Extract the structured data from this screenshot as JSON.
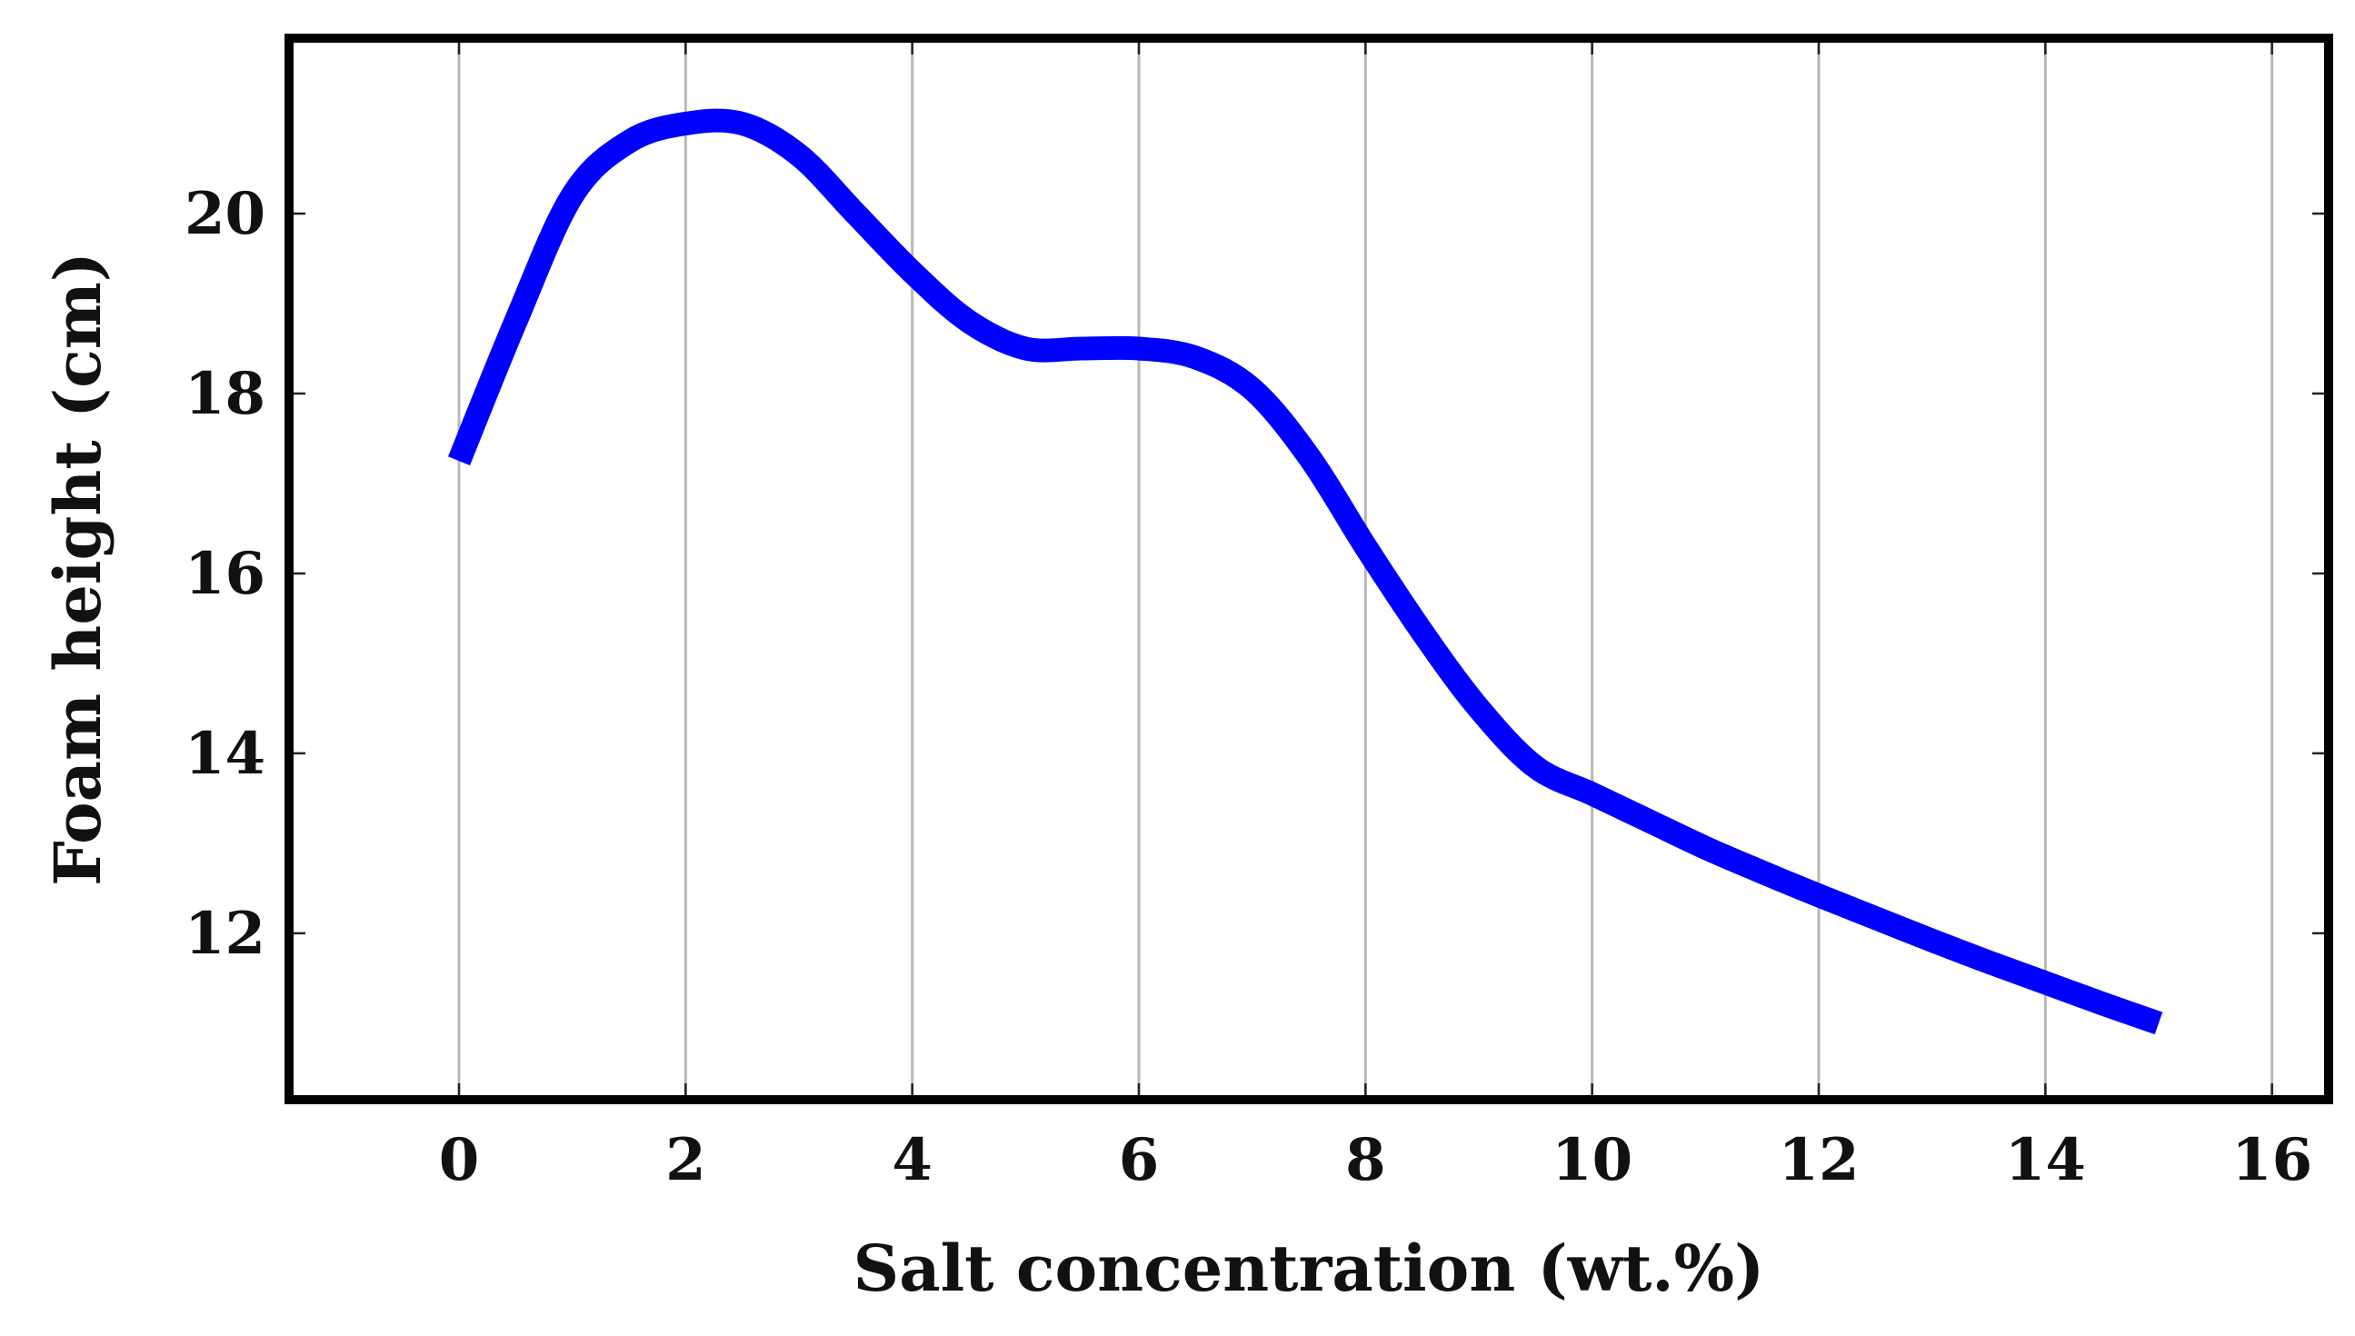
{
  "chart_data": {
    "type": "line",
    "title": "",
    "xlabel": "Salt concentration (wt.%)",
    "ylabel": "Foam height (cm)",
    "xlim": [
      -1.5,
      16.5
    ],
    "ylim": [
      10.15,
      21.95
    ],
    "x_ticks": [
      0,
      2,
      4,
      6,
      8,
      10,
      12,
      14,
      16
    ],
    "y_ticks": [
      12,
      14,
      16,
      18,
      20
    ],
    "grid": {
      "vertical": true,
      "horizontal": false
    },
    "series": [
      {
        "color": "#0000ff",
        "x": [
          0.0,
          0.5,
          1.0,
          1.5,
          2.0,
          2.5,
          3.0,
          3.5,
          4.0,
          4.5,
          5.0,
          5.5,
          6.0,
          6.5,
          7.0,
          7.5,
          8.0,
          8.5,
          9.0,
          9.5,
          10.0,
          10.5,
          11.0,
          11.5,
          12.0,
          12.5,
          13.0,
          13.5,
          14.0,
          14.5,
          15.0
        ],
        "y": [
          17.25,
          18.8,
          20.2,
          20.8,
          21.0,
          21.0,
          20.65,
          20.0,
          19.35,
          18.8,
          18.5,
          18.5,
          18.5,
          18.4,
          18.05,
          17.3,
          16.3,
          15.35,
          14.5,
          13.85,
          13.55,
          13.25,
          12.95,
          12.68,
          12.42,
          12.17,
          11.92,
          11.68,
          11.45,
          11.22,
          11.0
        ]
      }
    ]
  }
}
